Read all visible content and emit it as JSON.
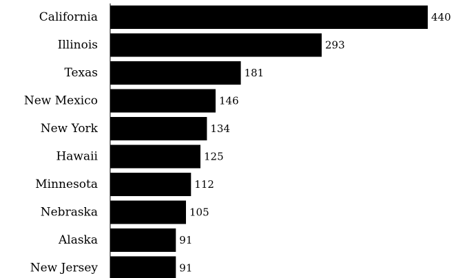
{
  "chart_data": {
    "type": "bar",
    "orientation": "horizontal",
    "categories": [
      "California",
      "Illinois",
      "Texas",
      "New Mexico",
      "New York",
      "Hawaii",
      "Minnesota",
      "Nebraska",
      "Alaska",
      "New Jersey"
    ],
    "values": [
      440,
      293,
      181,
      146,
      134,
      125,
      112,
      105,
      91,
      91
    ],
    "value_labels": [
      "440",
      "293",
      "181",
      "146",
      "134",
      "125",
      "112",
      "105",
      "91",
      "91"
    ],
    "bar_color": "#000000",
    "xlim": [
      0,
      440
    ],
    "grid": false,
    "legend": "none"
  }
}
